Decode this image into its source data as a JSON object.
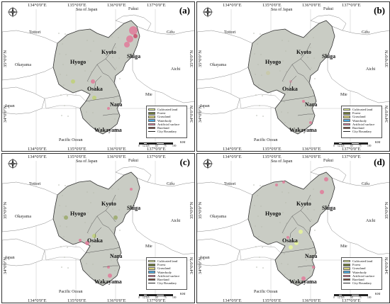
{
  "panels": [
    {
      "id": "a",
      "label": "(a)"
    },
    {
      "id": "b",
      "label": "(b)"
    },
    {
      "id": "c",
      "label": "(c)"
    },
    {
      "id": "d",
      "label": "(d)"
    }
  ],
  "longitudes": [
    "134°0'0\"E",
    "135°0'0\"E",
    "136°0'0\"E",
    "137°0'0\"E"
  ],
  "latitudes": [
    "34°0'0\"N",
    "35°0'0\"N"
  ],
  "places": {
    "sea_of_japan": "Sea of Japan",
    "fukui": "Fukui",
    "tottori": "Tottori",
    "gifu": "Gifu",
    "aichi": "Aichi",
    "okayama": "Okayama",
    "mie": "Mie",
    "japan": "Japan",
    "pacific_ocean": "Pacific Ocean",
    "hyogo": "Hyogo",
    "kyoto": "Kyoto",
    "shiga": "Shiga",
    "osaka": "Osaka",
    "nara": "Nara",
    "wakayama": "Wakayama"
  },
  "legend": [
    {
      "label": "Cultivated land",
      "color": "#e8f59a"
    },
    {
      "label": "Forest",
      "color": "#6e7a3a"
    },
    {
      "label": "Grassland",
      "color": "#d9d27a"
    },
    {
      "label": "Waterbody",
      "color": "#4aa8e0"
    },
    {
      "label": "Artificial surface",
      "color": "#e07a9a"
    },
    {
      "label": "Bareland",
      "color": "#7a4030"
    },
    {
      "label": "City Boundary",
      "color": "#222222"
    }
  ],
  "scale": {
    "ticks": [
      "0",
      "12.5",
      "25",
      "50",
      "75",
      "100"
    ],
    "unit": "KM"
  }
}
